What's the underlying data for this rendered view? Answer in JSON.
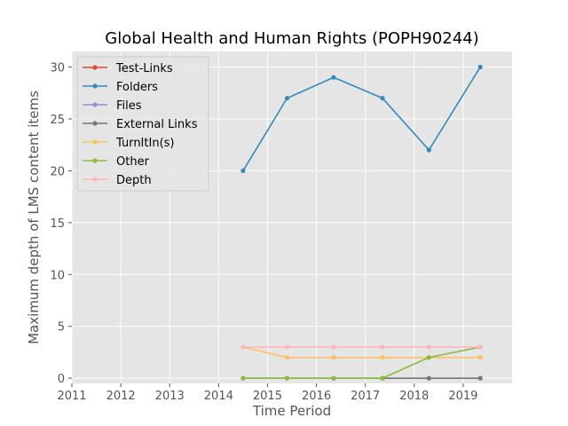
{
  "chart_data": {
    "type": "line",
    "title": "Global Health and Human Rights (POPH90244)",
    "xlabel": "Time Period",
    "ylabel": "Maximum depth of LMS content items",
    "xlim": [
      2011,
      2020
    ],
    "ylim": [
      -0.5,
      31.5
    ],
    "x_ticks": [
      2011,
      2012,
      2013,
      2014,
      2015,
      2016,
      2017,
      2018,
      2019
    ],
    "y_ticks": [
      0,
      5,
      10,
      15,
      20,
      25,
      30
    ],
    "grid": true,
    "legend_position": "top-left",
    "x": [
      2014.5,
      2015.4,
      2016.35,
      2017.35,
      2018.3,
      2019.35
    ],
    "series": [
      {
        "name": "Test-Links",
        "color": "#e24a33",
        "values": [
          null,
          null,
          null,
          null,
          null,
          null
        ]
      },
      {
        "name": "Folders",
        "color": "#348abd",
        "values": [
          20,
          27,
          29,
          27,
          22,
          30
        ]
      },
      {
        "name": "Files",
        "color": "#988ed5",
        "values": [
          null,
          null,
          null,
          null,
          null,
          null
        ]
      },
      {
        "name": "External Links",
        "color": "#777777",
        "values": [
          0,
          0,
          0,
          0,
          0,
          0
        ]
      },
      {
        "name": "TurnItIn(s)",
        "color": "#fbc15e",
        "values": [
          3,
          2,
          2,
          2,
          2,
          2
        ]
      },
      {
        "name": "Other",
        "color": "#8eba42",
        "values": [
          0,
          0,
          0,
          0,
          2,
          3
        ]
      },
      {
        "name": "Depth",
        "color": "#ffb5b8",
        "values": [
          3,
          3,
          3,
          3,
          3,
          3
        ]
      }
    ]
  }
}
